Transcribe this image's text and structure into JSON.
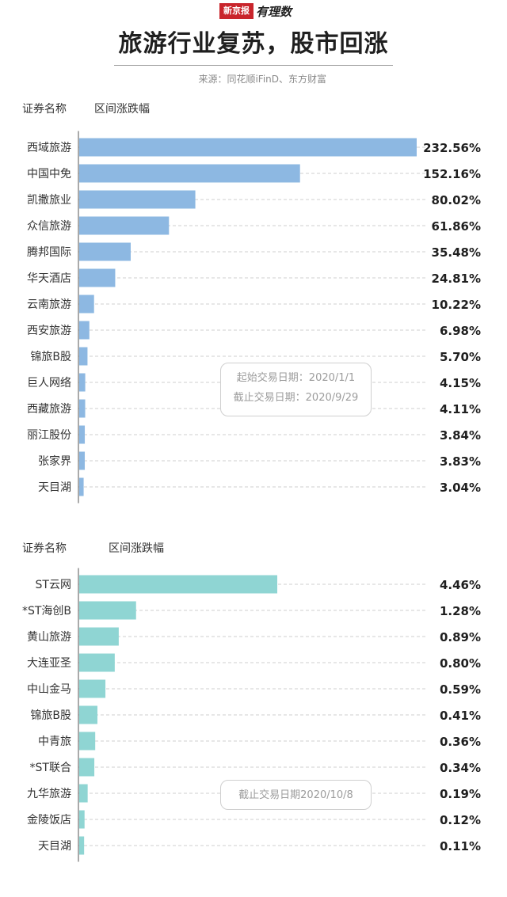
{
  "header": {
    "logo_left": "新京报",
    "logo_right": "有理数",
    "title": "旅游行业复苏，股市回涨",
    "source": "来源：同花顺iFinD、东方财富"
  },
  "colors": {
    "series1": "#8db8e2",
    "series2": "#8fd5d3",
    "grid": "#cfcfcf",
    "axis": "#555555"
  },
  "chart_data": [
    {
      "type": "bar",
      "orientation": "horizontal",
      "col_header_name": "证券名称",
      "col_header_value": "区间涨跌幅",
      "categories": [
        "西域旅游",
        "中国中免",
        "凯撒旅业",
        "众信旅游",
        "腾邦国际",
        "华天酒店",
        "云南旅游",
        "西安旅游",
        "锦旅B股",
        "巨人网络",
        "西藏旅游",
        "丽江股份",
        "张家界",
        "天目湖"
      ],
      "values": [
        232.56,
        152.16,
        80.02,
        61.86,
        35.48,
        24.81,
        10.22,
        6.98,
        5.7,
        4.15,
        4.11,
        3.84,
        3.83,
        3.04
      ],
      "value_labels": [
        "232.56%",
        "152.16%",
        "80.02%",
        "61.86%",
        "35.48%",
        "24.81%",
        "10.22%",
        "6.98%",
        "5.70%",
        "4.15%",
        "4.11%",
        "3.84%",
        "3.83%",
        "3.04%"
      ],
      "unit": "%",
      "annotation": [
        "起始交易日期：2020/1/1",
        "截止交易日期：2020/9/29"
      ]
    },
    {
      "type": "bar",
      "orientation": "horizontal",
      "col_header_name": "证券名称",
      "col_header_value": "区间涨跌幅",
      "categories": [
        "ST云网",
        "*ST海创B",
        "黄山旅游",
        "大连亚圣",
        "中山金马",
        "锦旅B股",
        "中青旅",
        "*ST联合",
        "九华旅游",
        "金陵饭店",
        "天目湖"
      ],
      "values": [
        4.46,
        1.28,
        0.89,
        0.8,
        0.59,
        0.41,
        0.36,
        0.34,
        0.19,
        0.12,
        0.11
      ],
      "value_labels": [
        "4.46%",
        "1.28%",
        "0.89%",
        "0.80%",
        "0.59%",
        "0.41%",
        "0.36%",
        "0.34%",
        "0.19%",
        "0.12%",
        "0.11%"
      ],
      "unit": "%",
      "annotation": [
        "截止交易日期2020/10/8"
      ]
    }
  ]
}
